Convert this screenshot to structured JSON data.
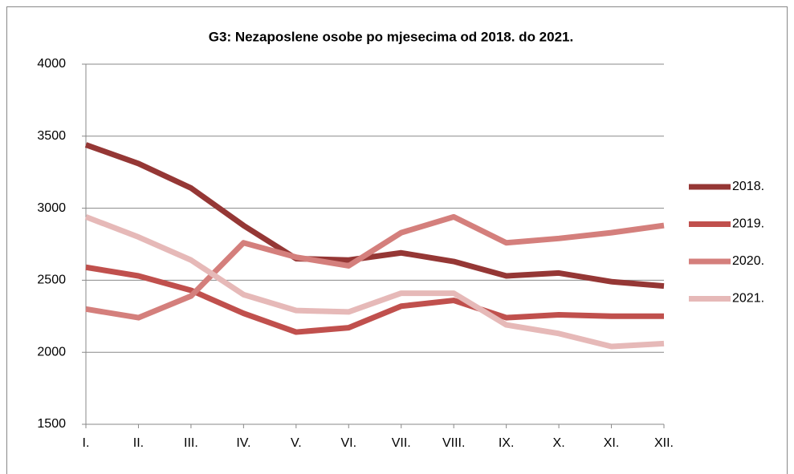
{
  "chart_data": {
    "type": "line",
    "title": "G3: Nezaposlene osobe po mjesecima od 2018. do 2021.",
    "categories": [
      "I.",
      "II.",
      "III.",
      "IV.",
      "V.",
      "VI.",
      "VII.",
      "VIII.",
      "IX.",
      "X.",
      "XI.",
      "XII."
    ],
    "series": [
      {
        "name": "2018.",
        "color": "#953735",
        "values": [
          3440,
          3310,
          3140,
          2880,
          2650,
          2640,
          2690,
          2630,
          2530,
          2550,
          2490,
          2460
        ]
      },
      {
        "name": "2019.",
        "color": "#c0504d",
        "values": [
          2590,
          2530,
          2430,
          2270,
          2140,
          2170,
          2320,
          2360,
          2240,
          2260,
          2250,
          2250
        ]
      },
      {
        "name": "2020.",
        "color": "#d47f7c",
        "values": [
          2300,
          2240,
          2390,
          2760,
          2660,
          2600,
          2830,
          2940,
          2760,
          2790,
          2830,
          2880
        ]
      },
      {
        "name": "2021.",
        "color": "#e6b9b8",
        "values": [
          2940,
          2800,
          2640,
          2400,
          2290,
          2280,
          2410,
          2410,
          2190,
          2130,
          2040,
          2060
        ]
      }
    ],
    "ylim": [
      1500,
      4000
    ],
    "yticks": [
      1500,
      2000,
      2500,
      3000,
      3500,
      4000
    ],
    "grid": true,
    "legend": "right"
  }
}
